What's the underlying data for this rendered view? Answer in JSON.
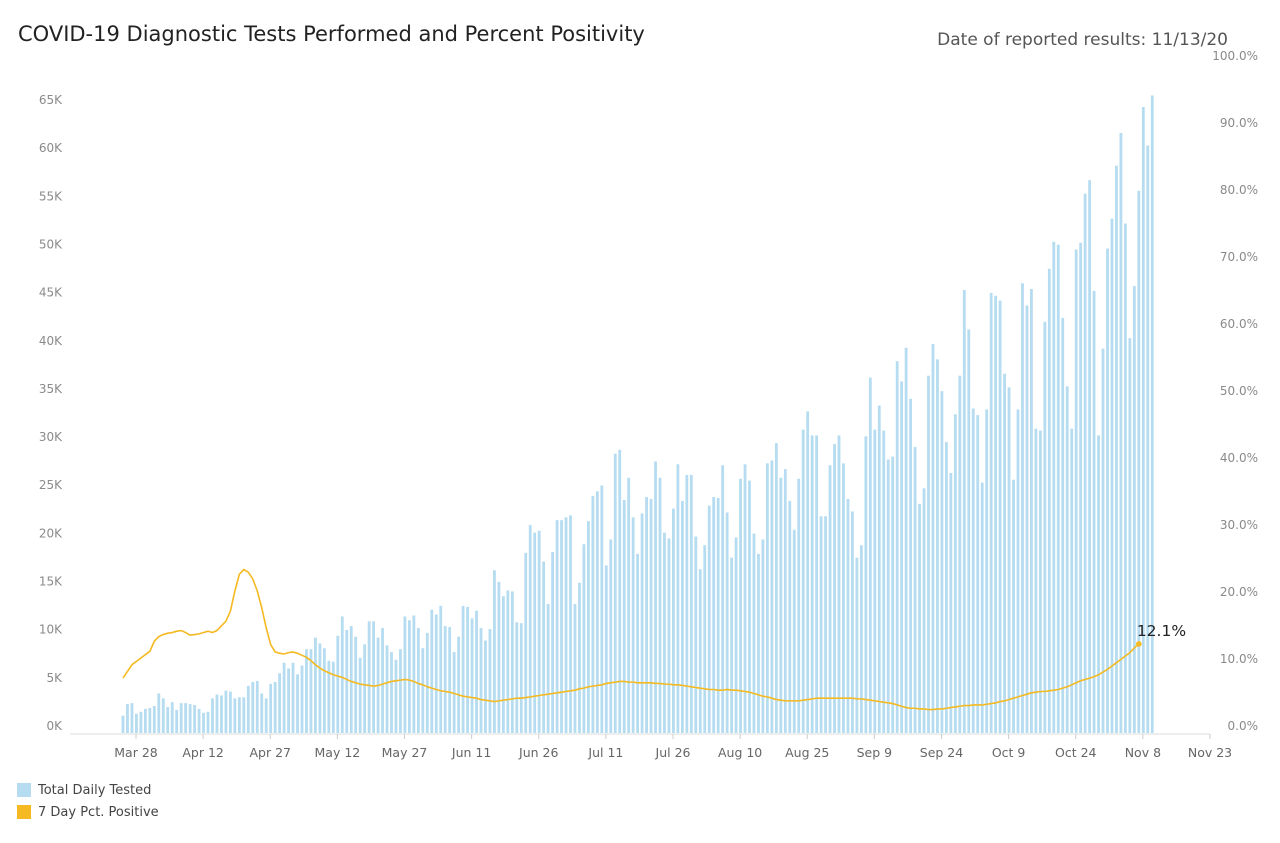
{
  "title": "COVID-19 Diagnostic Tests Performed and Percent Positivity",
  "date_label": "Date of reported results:",
  "date_value": "11/13/20",
  "colors": {
    "bar": "#b5dcf0",
    "line": "#f5b921",
    "axis_text": "#8a8a8a"
  },
  "legend": [
    {
      "label": "Total Daily Tested",
      "color": "#b5dcf0"
    },
    {
      "label": "7 Day Pct. Positive",
      "color": "#f5b921"
    }
  ],
  "chart_data": {
    "type": "bar",
    "x_ticks": [
      "Mar 28",
      "Apr 12",
      "Apr 27",
      "May 12",
      "May 27",
      "Jun 11",
      "Jun 26",
      "Jul 11",
      "Jul 26",
      "Aug 10",
      "Aug 25",
      "Sep 9",
      "Sep 24",
      "Oct 9",
      "Oct 24",
      "Nov 8",
      "Nov 23"
    ],
    "y_left_ticks": [
      "0K",
      "5K",
      "10K",
      "15K",
      "20K",
      "25K",
      "30K",
      "35K",
      "40K",
      "45K",
      "50K",
      "55K",
      "60K",
      "65K"
    ],
    "y_left_lim": [
      0,
      65000
    ],
    "y_right_ticks": [
      "0.0%",
      "10.0%",
      "20.0%",
      "30.0%",
      "40.0%",
      "50.0%",
      "60.0%",
      "70.0%",
      "80.0%",
      "90.0%",
      "100.0%"
    ],
    "y_right_lim": [
      0,
      100
    ],
    "x_start": "2020-03-28",
    "series": [
      {
        "name": "Total Daily Tested",
        "type": "bar",
        "start": "2020-03-28",
        "values": [
          1800,
          3000,
          3100,
          2000,
          2200,
          2500,
          2600,
          2800,
          4100,
          3600,
          2700,
          3200,
          2400,
          3100,
          3100,
          3000,
          2900,
          2500,
          2100,
          2200,
          3600,
          4000,
          3900,
          4400,
          4300,
          3600,
          3700,
          3700,
          4900,
          5300,
          5400,
          4100,
          3600,
          5100,
          5300,
          6200,
          7300,
          6700,
          7300,
          6100,
          7000,
          8700,
          8700,
          9900,
          9300,
          8800,
          7500,
          7400,
          10100,
          12100,
          10700,
          11100,
          10000,
          7800,
          9200,
          11600,
          11600,
          9900,
          10900,
          9100,
          8400,
          7600,
          8700,
          12100,
          11700,
          12200,
          10900,
          8800,
          10400,
          12800,
          12300,
          13200,
          11100,
          11000,
          8400,
          10000,
          13200,
          13100,
          11900,
          12700,
          10900,
          9600,
          10800,
          16900,
          15700,
          14200,
          14800,
          14700,
          11500,
          11400,
          18700,
          21600,
          20800,
          21000,
          17800,
          13400,
          18800,
          22100,
          22100,
          22400,
          22600,
          13400,
          15600,
          19600,
          22000,
          24600,
          25100,
          25700,
          17400,
          20100,
          29000,
          29400,
          24200,
          26500,
          22400,
          18600,
          22800,
          24500,
          24300,
          28200,
          26500,
          20800,
          20200,
          23300,
          27900,
          24100,
          26800,
          26800,
          20400,
          17000,
          19500,
          23600,
          24500,
          24400,
          27800,
          22900,
          18200,
          20300,
          26400,
          27900,
          26200,
          20700,
          18600,
          20100,
          28000,
          28300,
          30100,
          26500,
          27400,
          24100,
          21100,
          26400,
          31500,
          33400,
          30900,
          30900,
          22500,
          22500,
          27800,
          30000,
          30900,
          28000,
          24300,
          23000,
          18200,
          19500,
          30800,
          36900,
          31500,
          34000,
          31400,
          28400,
          28700,
          38600,
          36500,
          40000,
          34700,
          29700,
          23800,
          25400,
          37100,
          40400,
          38800,
          35500,
          30200,
          27000,
          33100,
          37100,
          46000,
          41900,
          33700,
          33000,
          26000,
          33600,
          45700,
          45400,
          44900,
          37300,
          35900,
          26300,
          33600,
          46700,
          44400,
          46100,
          31600,
          31400,
          42700,
          48200,
          51000,
          50700,
          43100,
          36000,
          31600,
          50200,
          50900,
          56000,
          57400,
          45900,
          30900,
          39900,
          50300,
          53400,
          58900,
          62300,
          52900,
          41000,
          46400,
          56300,
          65000,
          61000,
          66200
        ]
      },
      {
        "name": "7 Day Pct. Positive",
        "type": "line",
        "start": "2020-03-28",
        "values": [
          7.0,
          8.0,
          9.0,
          9.5,
          10.0,
          10.5,
          11.0,
          12.5,
          13.2,
          13.5,
          13.7,
          13.8,
          14.0,
          14.1,
          13.8,
          13.4,
          13.5,
          13.6,
          13.8,
          14.0,
          13.8,
          14.1,
          14.8,
          15.5,
          17.0,
          20.0,
          22.5,
          23.2,
          22.8,
          21.8,
          20.0,
          17.5,
          14.5,
          12.0,
          10.9,
          10.7,
          10.6,
          10.8,
          10.9,
          10.7,
          10.4,
          10.1,
          9.6,
          9.0,
          8.5,
          8.1,
          7.8,
          7.5,
          7.3,
          7.1,
          6.8,
          6.5,
          6.3,
          6.1,
          6.0,
          5.9,
          5.8,
          5.9,
          6.1,
          6.3,
          6.5,
          6.6,
          6.7,
          6.8,
          6.7,
          6.5,
          6.2,
          6.0,
          5.7,
          5.5,
          5.3,
          5.1,
          5.0,
          4.9,
          4.7,
          4.5,
          4.3,
          4.2,
          4.1,
          4.0,
          3.8,
          3.7,
          3.6,
          3.5,
          3.6,
          3.7,
          3.8,
          3.9,
          4.0,
          4.0,
          4.1,
          4.2,
          4.3,
          4.4,
          4.5,
          4.6,
          4.7,
          4.8,
          4.9,
          5.0,
          5.1,
          5.2,
          5.4,
          5.5,
          5.7,
          5.8,
          5.9,
          6.0,
          6.2,
          6.3,
          6.4,
          6.5,
          6.5,
          6.4,
          6.4,
          6.3,
          6.3,
          6.3,
          6.3,
          6.2,
          6.2,
          6.1,
          6.1,
          6.0,
          6.0,
          5.9,
          5.8,
          5.7,
          5.6,
          5.5,
          5.4,
          5.3,
          5.3,
          5.2,
          5.2,
          5.3,
          5.2,
          5.2,
          5.1,
          5.0,
          4.9,
          4.7,
          4.5,
          4.3,
          4.2,
          4.0,
          3.8,
          3.7,
          3.6,
          3.6,
          3.6,
          3.6,
          3.7,
          3.8,
          3.9,
          4.0,
          4.0,
          4.0,
          4.0,
          4.0,
          4.0,
          4.0,
          4.0,
          4.0,
          3.9,
          3.9,
          3.8,
          3.7,
          3.6,
          3.5,
          3.4,
          3.3,
          3.2,
          3.0,
          2.8,
          2.6,
          2.5,
          2.5,
          2.4,
          2.4,
          2.3,
          2.3,
          2.4,
          2.4,
          2.5,
          2.6,
          2.7,
          2.8,
          2.9,
          2.9,
          3.0,
          3.0,
          3.0,
          3.1,
          3.2,
          3.3,
          3.5,
          3.6,
          3.8,
          4.0,
          4.2,
          4.4,
          4.6,
          4.8,
          4.9,
          5.0,
          5.0,
          5.1,
          5.2,
          5.3,
          5.5,
          5.7,
          6.0,
          6.3,
          6.6,
          6.8,
          7.0,
          7.2,
          7.5,
          7.9,
          8.3,
          8.8,
          9.3,
          9.8,
          10.3,
          10.8,
          11.5,
          12.1
        ]
      }
    ],
    "end_label": "12.1%"
  }
}
